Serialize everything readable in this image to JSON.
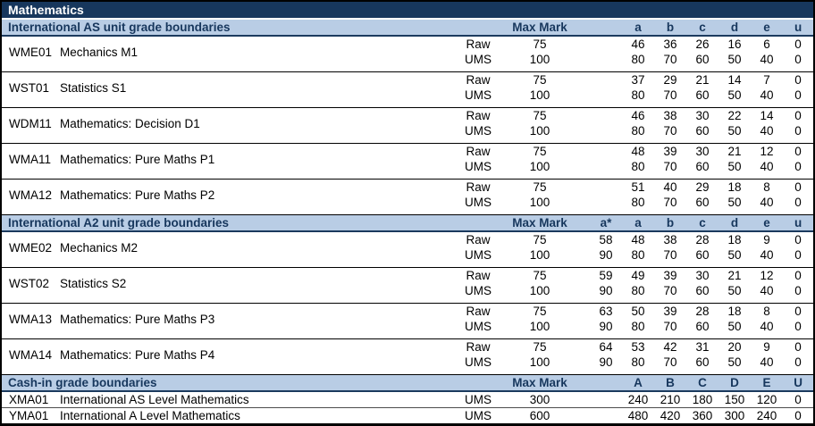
{
  "title": "Mathematics",
  "max_mark_label": "Max Mark",
  "colors": {
    "subject_bar_bg": "#17375D",
    "subject_bar_text": "#FFFFFF",
    "section_bar_bg": "#B9CDE5",
    "section_bar_text": "#17375D",
    "border": "#000000",
    "body_text": "#000000",
    "row_bg": "#FFFFFF"
  },
  "sections": [
    {
      "name": "International AS unit grade boundaries",
      "grade_columns": [
        "a",
        "b",
        "c",
        "d",
        "e",
        "u"
      ],
      "units": [
        {
          "code": "WME01",
          "title": "Mechanics M1",
          "rows": [
            {
              "type": "Raw",
              "max_mark": "75",
              "boundaries": [
                "46",
                "36",
                "26",
                "16",
                "6",
                "0"
              ]
            },
            {
              "type": "UMS",
              "max_mark": "100",
              "boundaries": [
                "80",
                "70",
                "60",
                "50",
                "40",
                "0"
              ]
            }
          ]
        },
        {
          "code": "WST01",
          "title": "Statistics S1",
          "rows": [
            {
              "type": "Raw",
              "max_mark": "75",
              "boundaries": [
                "37",
                "29",
                "21",
                "14",
                "7",
                "0"
              ]
            },
            {
              "type": "UMS",
              "max_mark": "100",
              "boundaries": [
                "80",
                "70",
                "60",
                "50",
                "40",
                "0"
              ]
            }
          ]
        },
        {
          "code": "WDM11",
          "title": "Mathematics: Decision D1",
          "rows": [
            {
              "type": "Raw",
              "max_mark": "75",
              "boundaries": [
                "46",
                "38",
                "30",
                "22",
                "14",
                "0"
              ]
            },
            {
              "type": "UMS",
              "max_mark": "100",
              "boundaries": [
                "80",
                "70",
                "60",
                "50",
                "40",
                "0"
              ]
            }
          ]
        },
        {
          "code": "WMA11",
          "title": "Mathematics: Pure Maths P1",
          "rows": [
            {
              "type": "Raw",
              "max_mark": "75",
              "boundaries": [
                "48",
                "39",
                "30",
                "21",
                "12",
                "0"
              ]
            },
            {
              "type": "UMS",
              "max_mark": "100",
              "boundaries": [
                "80",
                "70",
                "60",
                "50",
                "40",
                "0"
              ]
            }
          ]
        },
        {
          "code": "WMA12",
          "title": "Mathematics: Pure Maths P2",
          "rows": [
            {
              "type": "Raw",
              "max_mark": "75",
              "boundaries": [
                "51",
                "40",
                "29",
                "18",
                "8",
                "0"
              ]
            },
            {
              "type": "UMS",
              "max_mark": "100",
              "boundaries": [
                "80",
                "70",
                "60",
                "50",
                "40",
                "0"
              ]
            }
          ]
        }
      ]
    },
    {
      "name": "International A2 unit grade boundaries",
      "grade_columns": [
        "a*",
        "a",
        "b",
        "c",
        "d",
        "e",
        "u"
      ],
      "units": [
        {
          "code": "WME02",
          "title": "Mechanics M2",
          "rows": [
            {
              "type": "Raw",
              "max_mark": "75",
              "boundaries": [
                "58",
                "48",
                "38",
                "28",
                "18",
                "9",
                "0"
              ]
            },
            {
              "type": "UMS",
              "max_mark": "100",
              "boundaries": [
                "90",
                "80",
                "70",
                "60",
                "50",
                "40",
                "0"
              ]
            }
          ]
        },
        {
          "code": "WST02",
          "title": "Statistics S2",
          "rows": [
            {
              "type": "Raw",
              "max_mark": "75",
              "boundaries": [
                "59",
                "49",
                "39",
                "30",
                "21",
                "12",
                "0"
              ]
            },
            {
              "type": "UMS",
              "max_mark": "100",
              "boundaries": [
                "90",
                "80",
                "70",
                "60",
                "50",
                "40",
                "0"
              ]
            }
          ]
        },
        {
          "code": "WMA13",
          "title": "Mathematics: Pure Maths P3",
          "rows": [
            {
              "type": "Raw",
              "max_mark": "75",
              "boundaries": [
                "63",
                "50",
                "39",
                "28",
                "18",
                "8",
                "0"
              ]
            },
            {
              "type": "UMS",
              "max_mark": "100",
              "boundaries": [
                "90",
                "80",
                "70",
                "60",
                "50",
                "40",
                "0"
              ]
            }
          ]
        },
        {
          "code": "WMA14",
          "title": "Mathematics: Pure Maths P4",
          "rows": [
            {
              "type": "Raw",
              "max_mark": "75",
              "boundaries": [
                "64",
                "53",
                "42",
                "31",
                "20",
                "9",
                "0"
              ]
            },
            {
              "type": "UMS",
              "max_mark": "100",
              "boundaries": [
                "90",
                "80",
                "70",
                "60",
                "50",
                "40",
                "0"
              ]
            }
          ]
        }
      ]
    },
    {
      "name": "Cash-in grade boundaries",
      "compact": true,
      "grade_columns": [
        "A",
        "B",
        "C",
        "D",
        "E",
        "U"
      ],
      "units": [
        {
          "code": "XMA01",
          "title": "International AS Level Mathematics",
          "rows": [
            {
              "type": "UMS",
              "max_mark": "300",
              "boundaries": [
                "240",
                "210",
                "180",
                "150",
                "120",
                "0"
              ]
            }
          ]
        },
        {
          "code": "YMA01",
          "title": "International A Level Mathematics",
          "rows": [
            {
              "type": "UMS",
              "max_mark": "600",
              "boundaries": [
                "480",
                "420",
                "360",
                "300",
                "240",
                "0"
              ]
            }
          ]
        }
      ]
    }
  ]
}
